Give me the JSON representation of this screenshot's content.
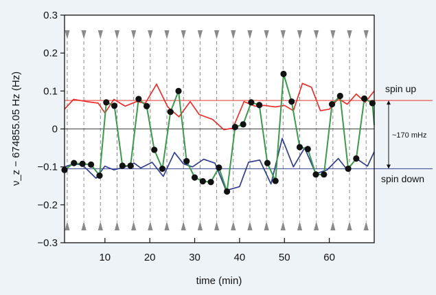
{
  "chart_data": {
    "type": "line",
    "title": "",
    "xlabel": "time (min)",
    "ylabel": "ν_z − 674855.05 Hz (Hz)",
    "xlim": [
      1,
      70
    ],
    "ylim": [
      -0.3,
      0.3
    ],
    "xticks": [
      10,
      20,
      30,
      40,
      50,
      60
    ],
    "yticks": [
      -0.3,
      -0.2,
      -0.1,
      0,
      0.1,
      0.2,
      0.3
    ],
    "xtick_labels": [
      "10",
      "20",
      "30",
      "40",
      "50",
      "60"
    ],
    "ytick_labels": [
      "−0.3",
      "−0.2",
      "−0.1",
      "0",
      "0.1",
      "0.2",
      "0.3"
    ],
    "reference_lines": [
      {
        "y": 0.075,
        "color": "#e8302c",
        "label": "spin up"
      },
      {
        "y": -0.105,
        "color": "#2f3d8f",
        "label": "spin down"
      },
      {
        "y": 0,
        "color": "#444444",
        "label": ""
      }
    ],
    "splitting_label": "~170 mHz",
    "spin_flip_times": [
      1.6,
      5.3,
      9.0,
      12.7,
      16.4,
      20.1,
      23.8,
      27.5,
      31.2,
      34.9,
      38.6,
      42.3,
      46.0,
      49.7,
      53.4,
      57.1,
      60.8,
      64.5,
      68.2
    ],
    "series": [
      {
        "color": "#e8302c",
        "x": [
          1,
          3,
          6,
          8.5,
          10,
          12,
          14.5,
          17,
          19,
          21.5,
          24,
          26.5,
          29,
          31,
          34,
          36.5,
          38.5,
          41,
          43.5,
          45.5,
          48,
          50,
          52,
          54,
          56,
          58,
          60,
          62,
          64,
          66,
          68,
          70
        ],
        "y": [
          0.052,
          0.078,
          0.072,
          0.068,
          0.042,
          0.078,
          0.06,
          0.072,
          0.068,
          0.118,
          0.058,
          0.032,
          0.072,
          0.038,
          0.025,
          -0.002,
          0.002,
          0.072,
          0.06,
          0.062,
          0.058,
          0.062,
          0.048,
          0.12,
          0.11,
          0.048,
          0.052,
          0.08,
          0.065,
          0.092,
          0.07,
          0.1
        ]
      },
      {
        "color": "#2f3d8f",
        "x": [
          1,
          3,
          5,
          8,
          10,
          12,
          14.5,
          16.5,
          18,
          20.5,
          23,
          25.5,
          27.5,
          29.5,
          32,
          34.5,
          37,
          40,
          42,
          44.5,
          47,
          49.5,
          52,
          54.5,
          57,
          59.5,
          62,
          64,
          66,
          68.5,
          70
        ],
        "y": [
          -0.1,
          -0.092,
          -0.095,
          -0.13,
          -0.098,
          -0.108,
          -0.1,
          -0.09,
          -0.103,
          -0.088,
          -0.125,
          -0.062,
          -0.092,
          -0.1,
          -0.08,
          -0.09,
          -0.162,
          -0.152,
          -0.088,
          -0.082,
          -0.145,
          -0.025,
          -0.1,
          -0.05,
          -0.118,
          -0.108,
          -0.078,
          -0.108,
          -0.078,
          -0.098,
          -0.06
        ]
      },
      {
        "color": "#3a9a4a",
        "x": [
          1.0,
          3.1,
          5.0,
          6.9,
          8.8,
          10.3,
          12.1,
          13.9,
          15.7,
          17.5,
          19.3,
          21.0,
          22.8,
          24.6,
          26.4,
          28.2,
          30.0,
          31.8,
          33.6,
          35.4,
          37.2,
          39.0,
          40.8,
          42.6,
          44.4,
          46.2,
          48.0,
          49.8,
          51.6,
          53.4,
          55.2,
          57.0,
          58.8,
          60.6,
          62.4,
          64.2,
          66.0,
          67.8,
          69.6,
          70.0
        ],
        "y": [
          -0.108,
          -0.09,
          -0.092,
          -0.094,
          -0.123,
          0.07,
          0.061,
          -0.097,
          -0.097,
          0.079,
          0.06,
          -0.055,
          -0.105,
          0.045,
          0.1,
          -0.085,
          -0.128,
          -0.138,
          -0.14,
          -0.102,
          -0.165,
          0.005,
          0.012,
          0.07,
          0.063,
          -0.09,
          -0.137,
          0.145,
          0.072,
          -0.048,
          -0.053,
          -0.12,
          -0.12,
          0.065,
          0.087,
          -0.105,
          -0.078,
          0.08,
          0.068,
          0.01
        ]
      }
    ],
    "markers": {
      "color": "#111111",
      "x": [
        1.0,
        3.1,
        5.0,
        6.9,
        8.8,
        10.3,
        12.1,
        13.9,
        15.7,
        17.5,
        19.3,
        21.0,
        22.8,
        24.6,
        26.4,
        28.2,
        30.0,
        31.8,
        33.6,
        35.4,
        37.2,
        39.0,
        40.8,
        42.6,
        44.4,
        46.2,
        48.0,
        49.8,
        51.6,
        53.4,
        55.2,
        57.0,
        58.8,
        60.6,
        62.4,
        64.2,
        66.0,
        67.8,
        69.6
      ],
      "y": [
        -0.108,
        -0.09,
        -0.092,
        -0.094,
        -0.123,
        0.07,
        0.061,
        -0.097,
        -0.097,
        0.079,
        0.06,
        -0.055,
        -0.105,
        0.045,
        0.1,
        -0.085,
        -0.128,
        -0.138,
        -0.14,
        -0.102,
        -0.165,
        0.005,
        0.012,
        0.07,
        0.063,
        -0.09,
        -0.137,
        0.145,
        0.072,
        -0.048,
        -0.053,
        -0.12,
        -0.12,
        0.065,
        0.087,
        -0.105,
        -0.078,
        0.08,
        0.068
      ]
    },
    "grid": false,
    "legend": "none",
    "annotations": {
      "spin_up": "spin up",
      "spin_down": "spin down"
    }
  }
}
